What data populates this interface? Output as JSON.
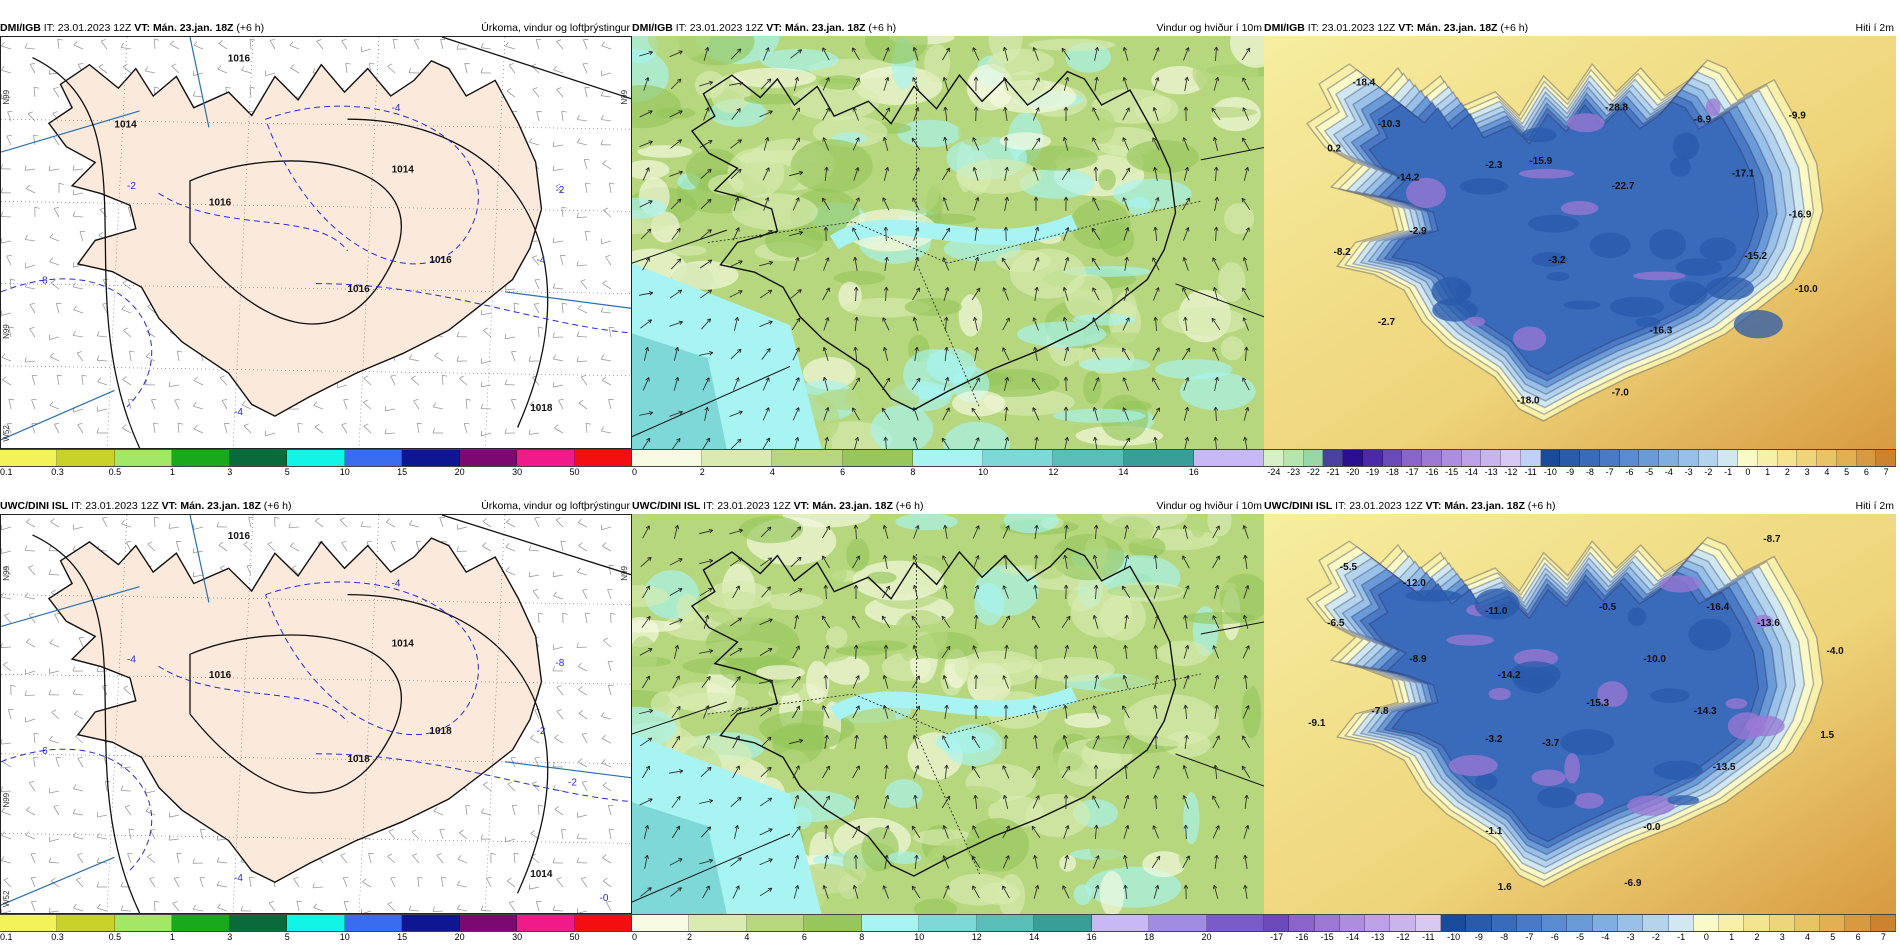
{
  "rows": [
    {
      "model": "DMI/IGB",
      "it_label": "IT:",
      "it_value": "23.01.2023 12Z",
      "vt_label": "VT:",
      "vt_value": "Mán. 23.jan. 18Z",
      "lead": "(+6 h)",
      "panels": [
        {
          "kind": "precip",
          "title": "Úrkoma, vindur og loftþrýstingur",
          "isobars": [
            "1016",
            "1016",
            "1014",
            "1016",
            "1016",
            "1018",
            "1014"
          ],
          "dashed": [
            "-4",
            "-2",
            "-8",
            "-4",
            "-2",
            "-4"
          ],
          "lat_labels": [
            "N99",
            "N99",
            "N99",
            "W52"
          ]
        },
        {
          "kind": "wind",
          "title": "Vindur og hviður í 10m"
        },
        {
          "kind": "temp",
          "title": "Hiti í 2m",
          "values": [
            {
              "t": "-18.4",
              "x": 0.14,
              "y": 0.12
            },
            {
              "t": "-10.3",
              "x": 0.18,
              "y": 0.22
            },
            {
              "t": "0.2",
              "x": 0.1,
              "y": 0.28
            },
            {
              "t": "-2.3",
              "x": 0.35,
              "y": 0.32
            },
            {
              "t": "-15.9",
              "x": 0.42,
              "y": 0.31
            },
            {
              "t": "-28.8",
              "x": 0.54,
              "y": 0.18
            },
            {
              "t": "-6.9",
              "x": 0.68,
              "y": 0.21
            },
            {
              "t": "-9.9",
              "x": 0.83,
              "y": 0.2
            },
            {
              "t": "-17.1",
              "x": 0.74,
              "y": 0.34
            },
            {
              "t": "-14.2",
              "x": 0.21,
              "y": 0.35
            },
            {
              "t": "-22.7",
              "x": 0.55,
              "y": 0.37
            },
            {
              "t": "-2.9",
              "x": 0.23,
              "y": 0.48
            },
            {
              "t": "-8.2",
              "x": 0.11,
              "y": 0.53
            },
            {
              "t": "-3.2",
              "x": 0.45,
              "y": 0.55
            },
            {
              "t": "-16.9",
              "x": 0.83,
              "y": 0.44
            },
            {
              "t": "-15.2",
              "x": 0.76,
              "y": 0.54
            },
            {
              "t": "-10.0",
              "x": 0.84,
              "y": 0.62
            },
            {
              "t": "-2.7",
              "x": 0.18,
              "y": 0.7
            },
            {
              "t": "-16.3",
              "x": 0.61,
              "y": 0.72
            },
            {
              "t": "-18.0",
              "x": 0.4,
              "y": 0.89
            },
            {
              "t": "-7.0",
              "x": 0.55,
              "y": 0.87
            }
          ]
        }
      ],
      "legends": [
        {
          "labels": [
            "0.1",
            "0.3",
            "0.5",
            "1",
            "3",
            "5",
            "10",
            "15",
            "20",
            "30",
            "50"
          ],
          "colors": [
            "#f2f25a",
            "#c8d22a",
            "#a2e866",
            "#1aa81c",
            "#0b6a3a",
            "#12f4e6",
            "#3a6cf0",
            "#0e1690",
            "#7a0a70",
            "#f01a8a",
            "#f40e12"
          ]
        },
        {
          "labels": [
            "0",
            "2",
            "4",
            "6",
            "8",
            "10",
            "12",
            "14",
            "16"
          ],
          "colors": [
            "#f8fbe4",
            "#d9ebb0",
            "#b6d77e",
            "#96c65c",
            "#a8f4f2",
            "#7fd8d8",
            "#5abdb8",
            "#3a9e98",
            "#c8b8f4"
          ]
        },
        {
          "labels": [
            "-24",
            "-23",
            "-22",
            "-21",
            "-20",
            "-19",
            "-18",
            "-17",
            "-16",
            "-15",
            "-14",
            "-13",
            "-12",
            "-11",
            "-10",
            "-9",
            "-8",
            "-7",
            "-6",
            "-5",
            "-4",
            "-3",
            "-2",
            "-1",
            "0",
            "1",
            "2",
            "3",
            "4",
            "5",
            "6",
            "7"
          ],
          "colors": [
            "#d7f0c8",
            "#b8e4b0",
            "#98d8a8",
            "#4a40a0",
            "#2a1090",
            "#4a2aa8",
            "#6a4ab8",
            "#8a64c8",
            "#9c78d4",
            "#ae8ce0",
            "#bca0e8",
            "#cab4ee",
            "#d8c8f4",
            "#c0d0f8",
            "#1a4a9a",
            "#2a5aaa",
            "#3a6aba",
            "#4a7ac6",
            "#5a8ad0",
            "#6a9ad8",
            "#80aee0",
            "#98c0e8",
            "#b4d4ee",
            "#d2e8f0",
            "#fafac8",
            "#f8f0a8",
            "#f4e490",
            "#eed47a",
            "#e8c466",
            "#e0b052",
            "#d89a40",
            "#cc822e"
          ]
        }
      ]
    },
    {
      "model": "UWC/DINI ISL",
      "it_label": "IT:",
      "it_value": "23.01.2023 12Z",
      "vt_label": "VT:",
      "vt_value": "Mán. 23.jan. 18Z",
      "lead": "(+6 h)",
      "panels": [
        {
          "kind": "precip",
          "title": "Úrkoma, vindur og loftþrýstingur",
          "isobars": [
            "1016",
            "1016",
            "1014",
            "1018",
            "1018",
            "1014"
          ],
          "dashed": [
            "-4",
            "-4",
            "-6",
            "-2",
            "-8",
            "-4",
            "-2",
            "-0"
          ],
          "lat_labels": [
            "N99",
            "N99",
            "N99",
            "W52"
          ]
        },
        {
          "kind": "wind",
          "title": "Vindur og hviður í 10m"
        },
        {
          "kind": "temp",
          "title": "Hiti í 2m",
          "values": [
            {
              "t": "-5.5",
              "x": 0.12,
              "y": 0.14
            },
            {
              "t": "-12.0",
              "x": 0.22,
              "y": 0.18
            },
            {
              "t": "-6.5",
              "x": 0.1,
              "y": 0.28
            },
            {
              "t": "-11.0",
              "x": 0.35,
              "y": 0.25
            },
            {
              "t": "-0.5",
              "x": 0.53,
              "y": 0.24
            },
            {
              "t": "-16.4",
              "x": 0.7,
              "y": 0.24
            },
            {
              "t": "-8.7",
              "x": 0.79,
              "y": 0.07
            },
            {
              "t": "-13.6",
              "x": 0.78,
              "y": 0.28
            },
            {
              "t": "-8.9",
              "x": 0.23,
              "y": 0.37
            },
            {
              "t": "-10.0",
              "x": 0.6,
              "y": 0.37
            },
            {
              "t": "-4.0",
              "x": 0.89,
              "y": 0.35
            },
            {
              "t": "-14.2",
              "x": 0.37,
              "y": 0.41
            },
            {
              "t": "-15.3",
              "x": 0.51,
              "y": 0.48
            },
            {
              "t": "-14.3",
              "x": 0.68,
              "y": 0.5
            },
            {
              "t": "-7.8",
              "x": 0.17,
              "y": 0.5
            },
            {
              "t": "-9.1",
              "x": 0.07,
              "y": 0.53
            },
            {
              "t": "-3.2",
              "x": 0.35,
              "y": 0.57
            },
            {
              "t": "-3.7",
              "x": 0.44,
              "y": 0.58
            },
            {
              "t": "1.5",
              "x": 0.88,
              "y": 0.56
            },
            {
              "t": "-13.5",
              "x": 0.71,
              "y": 0.64
            },
            {
              "t": "-1.1",
              "x": 0.35,
              "y": 0.8
            },
            {
              "t": "-0.0",
              "x": 0.6,
              "y": 0.79
            },
            {
              "t": "1.6",
              "x": 0.37,
              "y": 0.94
            },
            {
              "t": "-6.9",
              "x": 0.57,
              "y": 0.93
            }
          ]
        }
      ],
      "legends": [
        {
          "labels": [
            "0.1",
            "0.3",
            "0.5",
            "1",
            "3",
            "5",
            "10",
            "15",
            "20",
            "30",
            "50"
          ],
          "colors": [
            "#f2f25a",
            "#c8d22a",
            "#a2e866",
            "#1aa81c",
            "#0b6a3a",
            "#12f4e6",
            "#3a6cf0",
            "#0e1690",
            "#7a0a70",
            "#f01a8a",
            "#f40e12"
          ]
        },
        {
          "labels": [
            "0",
            "2",
            "4",
            "6",
            "8",
            "10",
            "12",
            "14",
            "16",
            "18",
            "20"
          ],
          "colors": [
            "#f8fbe4",
            "#d9ebb0",
            "#b6d77e",
            "#96c65c",
            "#a8f4f2",
            "#7fd8d8",
            "#5abdb8",
            "#3a9e98",
            "#c8b8f4",
            "#a08ce0",
            "#7a5cc8"
          ]
        },
        {
          "labels": [
            "-17",
            "-16",
            "-15",
            "-14",
            "-13",
            "-12",
            "-11",
            "-10",
            "-9",
            "-8",
            "-7",
            "-6",
            "-5",
            "-4",
            "-3",
            "-2",
            "-1",
            "0",
            "1",
            "2",
            "3",
            "4",
            "5",
            "6",
            "7"
          ],
          "colors": [
            "#6a4ab8",
            "#8a64c8",
            "#9c78d4",
            "#ae8ce0",
            "#bca0e8",
            "#cab4ee",
            "#d8c8f4",
            "#1a4a9a",
            "#2a5aaa",
            "#3a6aba",
            "#4a7ac6",
            "#5a8ad0",
            "#6a9ad8",
            "#80aee0",
            "#98c0e8",
            "#b4d4ee",
            "#d2e8f0",
            "#fafac8",
            "#f8f0a8",
            "#f4e490",
            "#eed47a",
            "#e8c466",
            "#e0b052",
            "#d89a40",
            "#cc822e"
          ]
        }
      ]
    }
  ]
}
